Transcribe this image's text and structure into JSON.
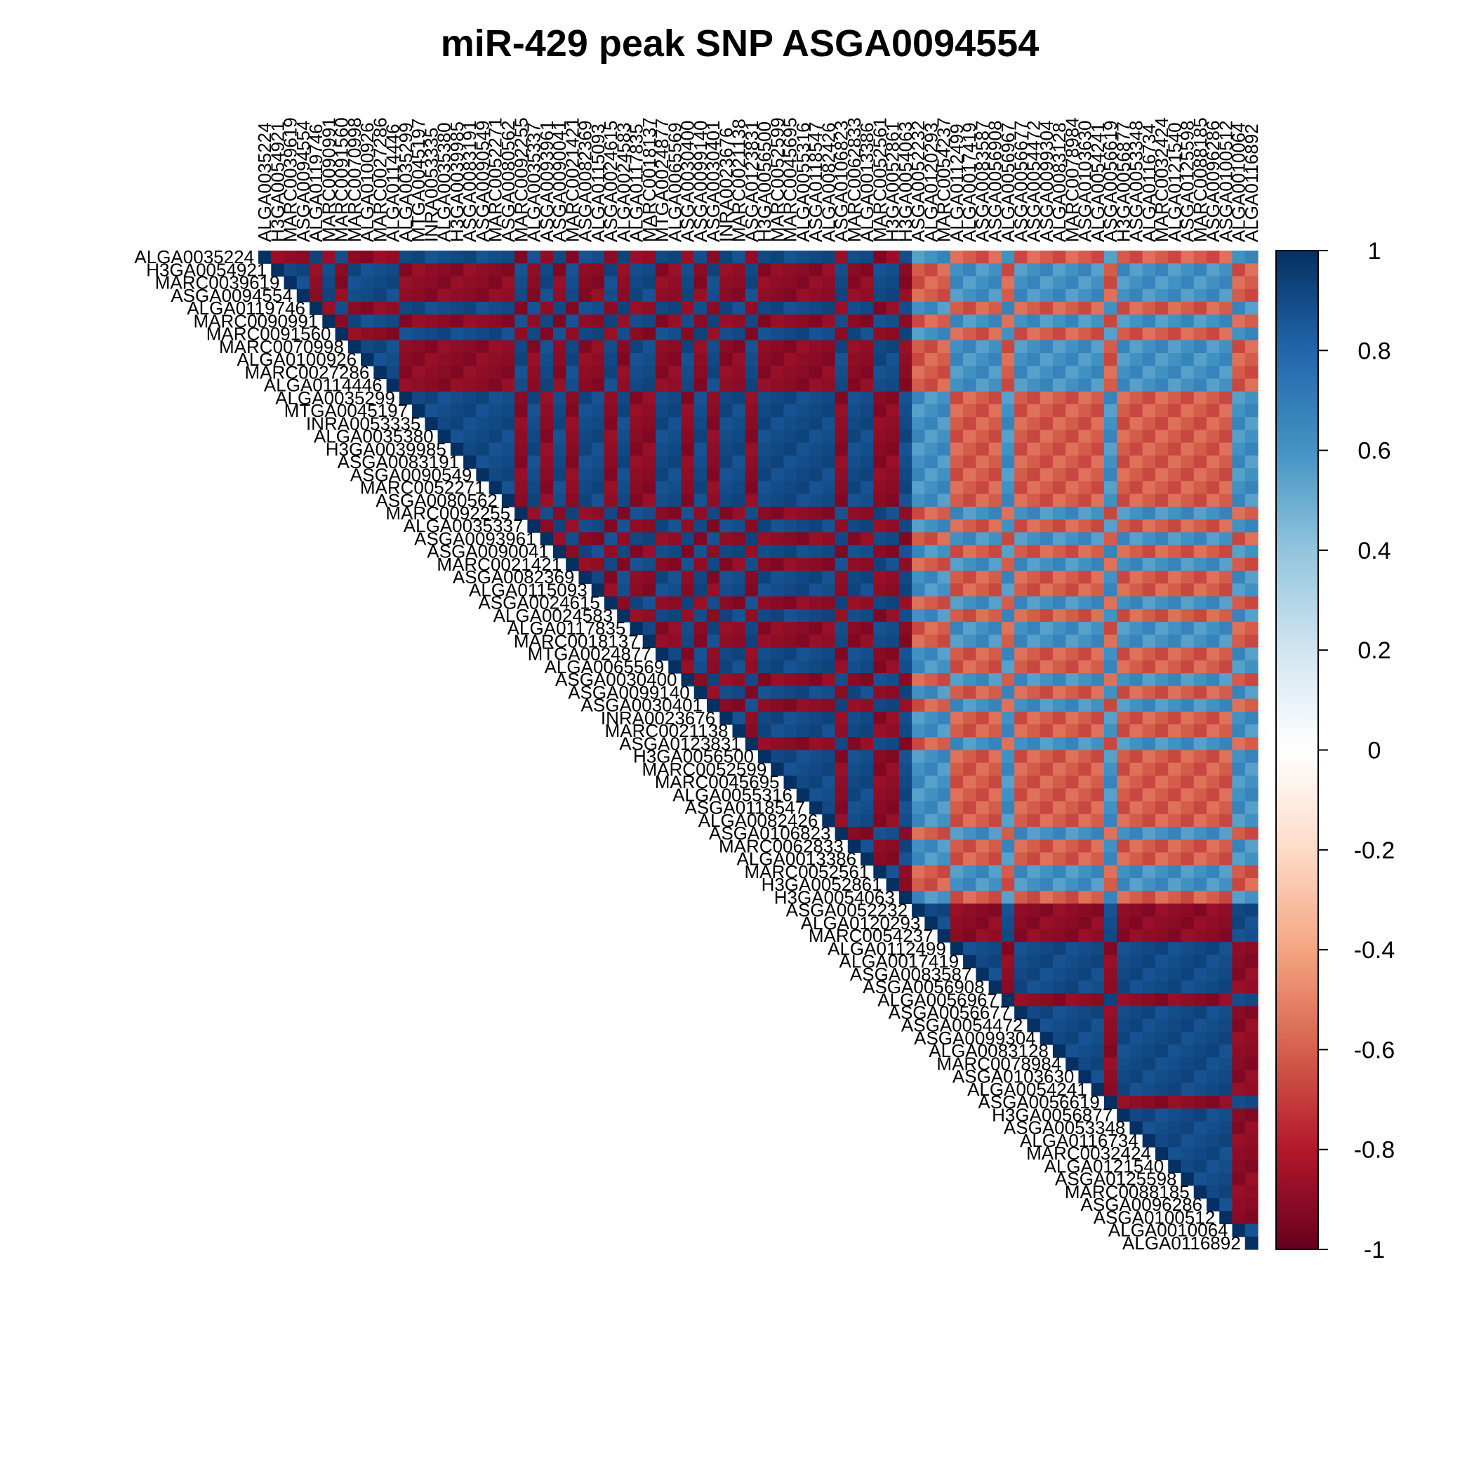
{
  "chart_data": {
    "type": "heatmap",
    "title": "miR-429 peak SNP ASGA0094554",
    "layout": "upper-triangle",
    "value_range": [
      -1,
      1
    ],
    "colorbar": {
      "ticks": [
        "1",
        "0.8",
        "0.6",
        "0.4",
        "0.2",
        "0",
        "-0.2",
        "-0.4",
        "-0.6",
        "-0.8",
        "-1"
      ],
      "colors": [
        "#67001F",
        "#B2182B",
        "#D6604D",
        "#F4A582",
        "#FDDBC7",
        "#FFFFFF",
        "#D1E5F0",
        "#92C5DE",
        "#4393C3",
        "#2166AC",
        "#053061"
      ]
    },
    "variables": [
      "ALGA0035224",
      "H3GA0054921",
      "MARC0039619",
      "ASGA0094554",
      "ALGA0119746",
      "MARC0090991",
      "MARC0091560",
      "MARC0070998",
      "ALGA0100926",
      "MARC0027286",
      "ALGA0114446",
      "ALGA0035299",
      "MTGA0045197",
      "INRA0053335",
      "ALGA0035380",
      "H3GA0039985",
      "ASGA0083191",
      "ASGA0090549",
      "MARC0052271",
      "ASGA0080562",
      "MARC0092255",
      "ALGA0035337",
      "ASGA0093961",
      "ASGA0090041",
      "MARC0021421",
      "ASGA0082369",
      "ALGA0115093",
      "ASGA0024615",
      "ALGA0024583",
      "ALGA0117835",
      "MARC0018137",
      "MTGA0024877",
      "ALGA0065569",
      "ASGA0030400",
      "ASGA0099140",
      "ASGA0030401",
      "INRA0023676",
      "MARC0021138",
      "ASGA0123831",
      "H3GA0056500",
      "MARC0052599",
      "MARC0045695",
      "ALGA0055316",
      "ASGA0118547",
      "ALGA0082426",
      "ASGA0106823",
      "MARC0062833",
      "ALGA0013386",
      "MARC0052561",
      "H3GA0052861",
      "H3GA0054063",
      "ASGA0052232",
      "ALGA0120293",
      "MARC0054237",
      "ALGA0112499",
      "ALGA0017419",
      "ASGA0083587",
      "ASGA0056908",
      "ALGA0056967",
      "ASGA0056677",
      "ASGA0054472",
      "ASGA0099304",
      "ALGA0083128",
      "MARC0078984",
      "ASGA0103630",
      "ALGA0054241",
      "ASGA0056619",
      "H3GA0056877",
      "ASGA0053348",
      "ALGA0116734",
      "MARC0032424",
      "ALGA0121540",
      "ASGA0125598",
      "MARC0088185",
      "ASGA0096286",
      "ASGA0100512",
      "ALGA0010064",
      "ALGA0116892"
    ]
  }
}
